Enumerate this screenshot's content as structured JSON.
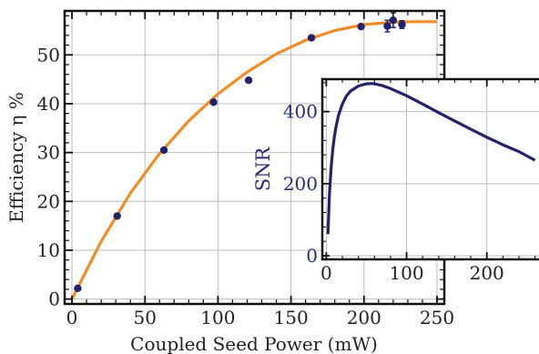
{
  "colors": {
    "main_curve": "#f28c28",
    "points": "#23236b",
    "inset_curve": "#23236b",
    "inset_label": "#2b2d7c",
    "grid": "#bdbdbd",
    "axis": "#111111"
  },
  "chart_data": [
    {
      "type": "scatter",
      "xlabel": "Coupled Seed Power (mW)",
      "ylabel": "Efficiency η %",
      "xlim": [
        -5,
        255
      ],
      "ylim": [
        -1,
        59
      ],
      "xticks": [
        0,
        50,
        100,
        150,
        200,
        250
      ],
      "yticks": [
        0,
        10,
        20,
        30,
        40,
        50
      ],
      "grid": true,
      "series": [
        {
          "kind": "points",
          "x": [
            4,
            31,
            63,
            97,
            121,
            164,
            198,
            216,
            220,
            226
          ],
          "y": [
            2.2,
            17,
            30.5,
            40.3,
            44.8,
            53.5,
            55.8,
            55.9,
            57.1,
            56.2
          ],
          "yerr": [
            0,
            0,
            0,
            0,
            0,
            0,
            0,
            1.2,
            1.5,
            0.8
          ]
        },
        {
          "kind": "fit",
          "x": [
            0,
            20,
            40,
            60,
            80,
            100,
            120,
            140,
            160,
            180,
            200,
            220,
            235,
            250
          ],
          "y": [
            0,
            11.8,
            21.7,
            29.8,
            36.5,
            42.0,
            46.5,
            50.2,
            53.0,
            55.0,
            56.2,
            56.7,
            56.8,
            56.8
          ]
        }
      ]
    },
    {
      "type": "line",
      "ylabel": "SNR",
      "xlim": [
        -5,
        265
      ],
      "ylim": [
        -10,
        490
      ],
      "xticks": [
        0,
        100,
        200
      ],
      "yticks": [
        0,
        200,
        400
      ],
      "grid": true,
      "series": [
        {
          "x": [
            2,
            4,
            6,
            8,
            10,
            12,
            15,
            20,
            25,
            30,
            40,
            50,
            56,
            60,
            70,
            80,
            100,
            120,
            140,
            160,
            180,
            200,
            220,
            240,
            260
          ],
          "y": [
            60,
            175,
            245,
            295,
            330,
            357,
            388,
            421,
            443,
            457,
            471,
            477,
            478,
            477,
            472,
            464,
            444,
            421,
            397,
            374,
            351,
            329,
            308,
            289,
            265
          ]
        }
      ]
    }
  ]
}
